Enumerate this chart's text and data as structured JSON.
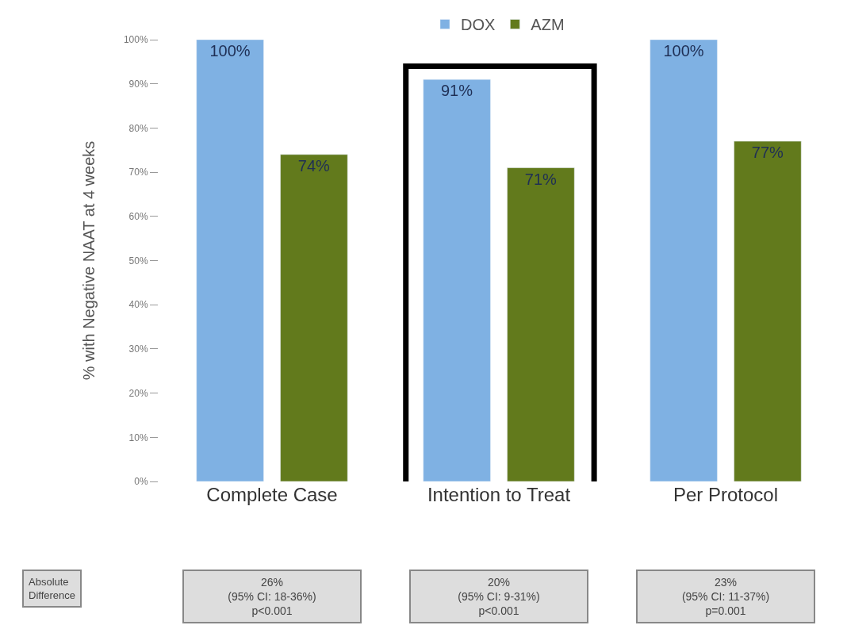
{
  "chart_data": {
    "type": "bar",
    "ylabel": "% with Negative NAAT at 4 weeks",
    "categories": [
      "Complete Case",
      "Intention to Treat",
      "Per Protocol"
    ],
    "series": [
      {
        "name": "DOX",
        "color": "#7fb1e3",
        "values": [
          100,
          91,
          100
        ],
        "value_labels": [
          "100%",
          "91%",
          "100%"
        ]
      },
      {
        "name": "AZM",
        "color": "#627a1c",
        "values": [
          74,
          71,
          77
        ],
        "value_labels": [
          "74%",
          "71%",
          "77%"
        ]
      }
    ],
    "ylim": [
      0,
      100
    ],
    "yticks": [
      {
        "value": 0,
        "label": "0%"
      },
      {
        "value": 10,
        "label": "10%"
      },
      {
        "value": 20,
        "label": "20%"
      },
      {
        "value": 30,
        "label": "30%"
      },
      {
        "value": 40,
        "label": "40%"
      },
      {
        "value": 50,
        "label": "50%"
      },
      {
        "value": 60,
        "label": "60%"
      },
      {
        "value": 70,
        "label": "70%"
      },
      {
        "value": 80,
        "label": "80%"
      },
      {
        "value": 90,
        "label": "90%"
      },
      {
        "value": 100,
        "label": "100%"
      }
    ],
    "annotations": [
      "Absolute\nDifference",
      "26%\n(95% CI: 18-36%)\np<0.001",
      "20%\n(95% CI: 9-31%)\np<0.001",
      "23%\n(95% CI: 11-37%)\np=0.001"
    ],
    "legend": "top",
    "grid": false
  }
}
